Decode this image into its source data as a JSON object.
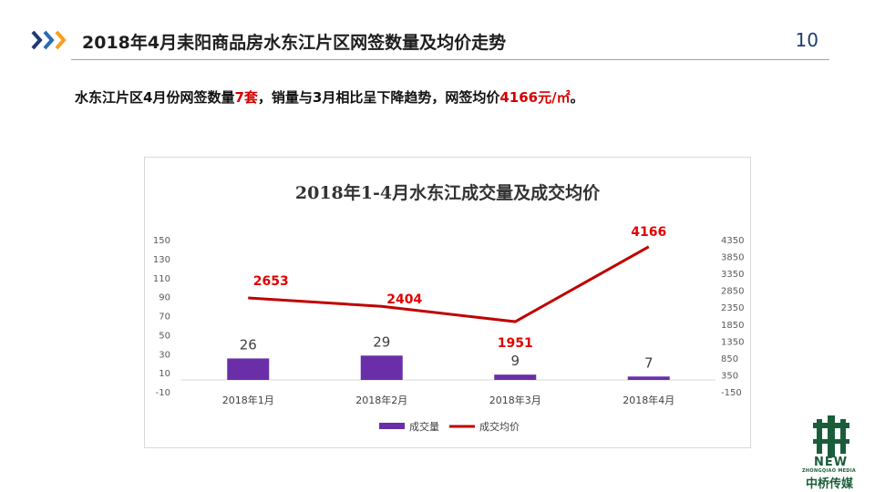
{
  "header": {
    "title": "2018年4月耒阳商品房水东江片区网签数量及均价走势",
    "page_number": "10",
    "arrow_colors": [
      "#1f3b72",
      "#2b6cb3",
      "#f5a020"
    ]
  },
  "summary": {
    "prefix": "水东江片区4月份网签数量",
    "count": "7套",
    "middle": "，销量与3月相比呈下降趋势，网签均价",
    "price": "4166元/㎡",
    "suffix": "。"
  },
  "brand": {
    "new_label": "NEW",
    "sub_label": "ZHONGQIAO MEDIA",
    "cn_name": "中桥传媒",
    "color": "#1a5d3a"
  },
  "chart_data": {
    "type": "bar+line",
    "title": "2018年1-4月水东江成交量及成交均价",
    "categories": [
      "2018年1月",
      "2018年2月",
      "2018年3月",
      "2018年4月"
    ],
    "series": [
      {
        "name": "成交量",
        "type": "bar",
        "axis": "left",
        "values": [
          26,
          29,
          9,
          7
        ],
        "labels": [
          "26",
          "29",
          "9",
          "7"
        ],
        "color": "#6a2fa8"
      },
      {
        "name": "成交均价",
        "type": "line",
        "axis": "right",
        "values": [
          2653,
          2404,
          1951,
          4166
        ],
        "labels": [
          "2653",
          "2404",
          "1951",
          "4166"
        ],
        "color": "#c00000"
      }
    ],
    "y_left": {
      "min": -10,
      "max": 150,
      "step": 20,
      "ticks": [
        "-10",
        "10",
        "30",
        "50",
        "70",
        "90",
        "110",
        "130",
        "150"
      ]
    },
    "y_right": {
      "min": -150,
      "max": 4350,
      "step": 500,
      "ticks": [
        "-150",
        "350",
        "850",
        "1350",
        "1850",
        "2350",
        "2850",
        "3350",
        "3850",
        "4350"
      ]
    },
    "grid": false,
    "legend_position": "bottom",
    "legend_entries": [
      "成交量",
      "成交均价"
    ]
  }
}
